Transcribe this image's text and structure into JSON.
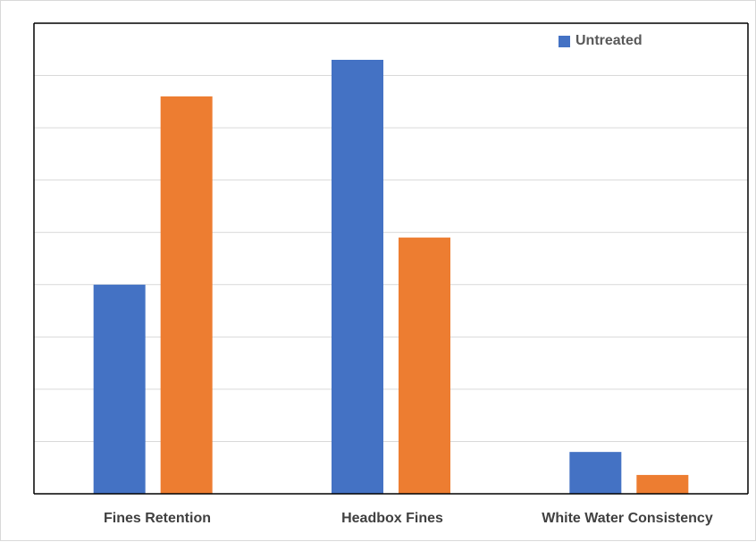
{
  "chart_data": {
    "type": "bar",
    "categories": [
      "Fines Retention",
      "Headbox Fines",
      "White Water Consistency"
    ],
    "series": [
      {
        "name": "Untreated",
        "values": [
          40,
          83,
          8
        ],
        "color": "#4472C4"
      },
      {
        "values": [
          76,
          49,
          3.6
        ],
        "color": "#ED7D31"
      }
    ],
    "ylim": [
      0,
      90
    ],
    "grid": true,
    "legend_position": "top-right"
  }
}
